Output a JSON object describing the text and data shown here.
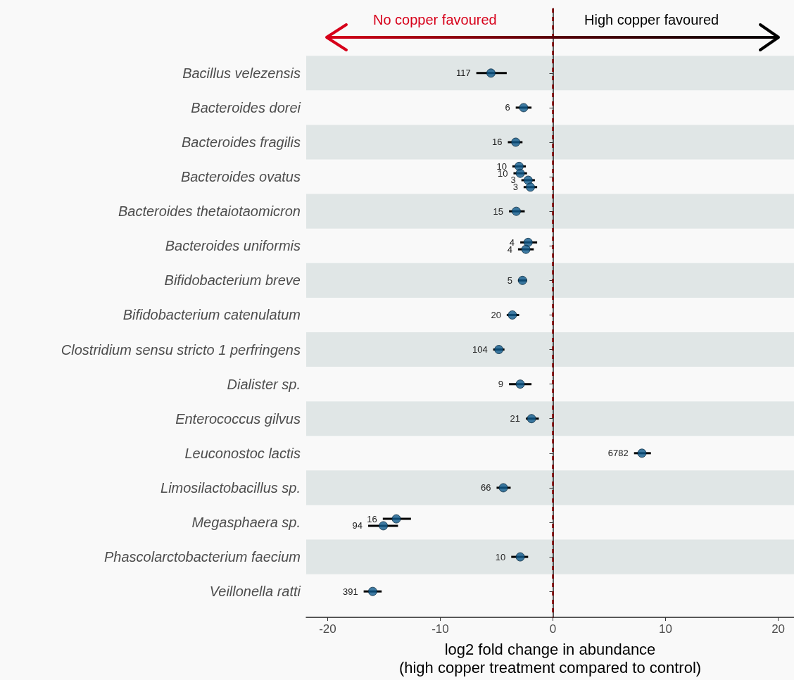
{
  "chart_data": {
    "type": "scatter",
    "orientation": "horizontal",
    "xlabel": "log2 fold change in abundance\n(high copper treatment compared to control)",
    "categories": [
      "Bacillus velezensis",
      "Bacteroides dorei",
      "Bacteroides fragilis",
      "Bacteroides ovatus",
      "Bacteroides thetaiotaomicron",
      "Bacteroides uniformis",
      "Bifidobacterium breve",
      "Bifidobacterium catenulatum",
      "Clostridium sensu stricto 1 perfringens",
      "Dialister sp.",
      "Enterococcus gilvus",
      "Leuconostoc lactis",
      "Limosilactobacillus sp.",
      "Megasphaera sp.",
      "Phascolarctobacterium faecium",
      "Veillonella ratti"
    ],
    "series": [
      {
        "color": "#0f5a8c",
        "values": [
          -5.5,
          -2.6,
          -3.3,
          -3.0,
          -3.25,
          -2.2,
          -2.7,
          -3.6,
          -4.8,
          -2.9,
          -1.9,
          7.9,
          -4.4,
          -13.9,
          -2.9,
          -16.0
        ],
        "errors": [
          [
            -6.8,
            -4.1
          ],
          [
            -3.3,
            -1.9
          ],
          [
            -4.0,
            -2.7
          ],
          [
            -3.6,
            -2.4
          ],
          [
            -3.9,
            -2.5
          ],
          [
            -2.9,
            -1.4
          ],
          [
            -3.1,
            -2.3
          ],
          [
            -4.1,
            -3.0
          ],
          [
            -5.3,
            -4.3
          ],
          [
            -3.9,
            -1.9
          ],
          [
            -2.4,
            -1.25
          ],
          [
            7.2,
            8.7
          ],
          [
            -5.0,
            -3.75
          ],
          [
            -15.1,
            -12.6
          ],
          [
            -3.7,
            -2.2
          ],
          [
            -16.8,
            -15.2
          ]
        ]
      },
      {
        "color": "#0f5a8c",
        "values": [
          null,
          null,
          null,
          -2.9,
          null,
          -2.4,
          null,
          null,
          null,
          null,
          null,
          null,
          null,
          -15.05,
          null,
          null
        ],
        "errors": [
          null,
          null,
          null,
          [
            -3.5,
            -2.3
          ],
          null,
          [
            -3.1,
            -1.7
          ],
          null,
          null,
          null,
          null,
          null,
          null,
          null,
          [
            -16.4,
            -13.75
          ],
          null,
          null
        ]
      },
      {
        "color": "#0f5a8c",
        "values": [
          null,
          null,
          null,
          -2.2,
          null,
          null,
          null,
          null,
          null,
          null,
          null,
          null,
          null,
          null,
          null,
          null
        ],
        "errors": [
          null,
          null,
          null,
          [
            -2.8,
            -1.6
          ],
          null,
          null,
          null,
          null,
          null,
          null,
          null,
          null,
          null,
          null,
          null,
          null
        ]
      },
      {
        "color": "#0f5a8c",
        "values": [
          null,
          null,
          null,
          -2.0,
          null,
          null,
          null,
          null,
          null,
          null,
          null,
          null,
          null,
          null,
          null,
          null
        ],
        "errors": [
          null,
          null,
          null,
          [
            -2.6,
            -1.4
          ],
          null,
          null,
          null,
          null,
          null,
          null,
          null,
          null,
          null,
          null,
          null,
          null
        ]
      }
    ],
    "xlim": [
      -21.9,
      21.4
    ],
    "xticks": [
      -20,
      -10,
      0,
      10,
      20
    ],
    "marker": "circle",
    "ref_lines": [
      {
        "axis": "x",
        "value": 0,
        "color": "#7f0000",
        "line_style": "dashed"
      }
    ],
    "bands": [
      {
        "axis": "y",
        "from": "Bacillus velezensis",
        "to": "Bacillus velezensis",
        "color": "#e0e6e6"
      },
      {
        "axis": "y",
        "from": "Bacteroides fragilis",
        "to": "Bacteroides fragilis",
        "color": "#e0e6e6"
      },
      {
        "axis": "y",
        "from": "Bacteroides thetaiotaomicron",
        "to": "Bacteroides thetaiotaomicron",
        "color": "#e0e6e6"
      },
      {
        "axis": "y",
        "from": "Bifidobacterium breve",
        "to": "Bifidobacterium breve",
        "color": "#e0e6e6"
      },
      {
        "axis": "y",
        "from": "Clostridium sensu stricto 1 perfringens",
        "to": "Clostridium sensu stricto 1 perfringens",
        "color": "#e0e6e6"
      },
      {
        "axis": "y",
        "from": "Enterococcus gilvus",
        "to": "Enterococcus gilvus",
        "color": "#e0e6e6"
      },
      {
        "axis": "y",
        "from": "Limosilactobacillus sp.",
        "to": "Limosilactobacillus sp.",
        "color": "#e0e6e6"
      },
      {
        "axis": "y",
        "from": "Phascolarctobacterium faecium",
        "to": "Phascolarctobacterium faecium",
        "color": "#e0e6e6"
      }
    ],
    "annotations": [
      "No copper favoured",
      "High copper favoured",
      {
        "text": "117",
        "x": -5.5,
        "y": "Bacillus velezensis"
      },
      {
        "text": "6",
        "x": -2.6,
        "y": "Bacteroides dorei"
      },
      {
        "text": "16",
        "x": -3.3,
        "y": "Bacteroides fragilis"
      },
      {
        "text": "10",
        "x": -3.0,
        "y": "Bacteroides ovatus"
      },
      {
        "text": "10",
        "x": -2.9,
        "y": "Bacteroides ovatus"
      },
      {
        "text": "3",
        "x": -2.2,
        "y": "Bacteroides ovatus"
      },
      {
        "text": "3",
        "x": -2.0,
        "y": "Bacteroides ovatus"
      },
      {
        "text": "15",
        "x": -3.25,
        "y": "Bacteroides thetaiotaomicron"
      },
      {
        "text": "4",
        "x": -2.2,
        "y": "Bacteroides uniformis"
      },
      {
        "text": "4",
        "x": -2.4,
        "y": "Bacteroides uniformis"
      },
      {
        "text": "5",
        "x": -2.7,
        "y": "Bifidobacterium breve"
      },
      {
        "text": "20",
        "x": -3.6,
        "y": "Bifidobacterium catenulatum"
      },
      {
        "text": "104",
        "x": -4.8,
        "y": "Clostridium sensu stricto 1 perfringens"
      },
      {
        "text": "9",
        "x": -2.9,
        "y": "Dialister sp."
      },
      {
        "text": "21",
        "x": -1.9,
        "y": "Enterococcus gilvus"
      },
      {
        "text": "6782",
        "x": 7.9,
        "y": "Leuconostoc lactis"
      },
      {
        "text": "66",
        "x": -4.4,
        "y": "Limosilactobacillus sp."
      },
      {
        "text": "16",
        "x": -13.9,
        "y": "Megasphaera sp."
      },
      {
        "text": "94",
        "x": -15.05,
        "y": "Megasphaera sp."
      },
      {
        "text": "10",
        "x": -2.9,
        "y": "Phascolarctobacterium faecium"
      },
      {
        "text": "391",
        "x": -16.0,
        "y": "Veillonella ratti"
      }
    ]
  }
}
